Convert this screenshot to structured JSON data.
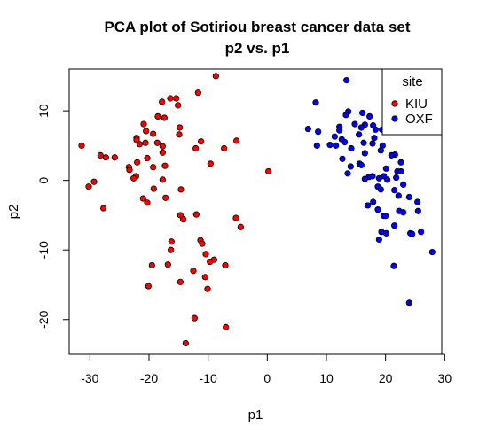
{
  "chart_data": {
    "type": "scatter",
    "title": "PCA plot of Sotiriou breast cancer data set",
    "subtitle": "p2 vs. p1",
    "xlabel": "p1",
    "ylabel": "p2",
    "xlim": [
      -33.5,
      29.5
    ],
    "ylim": [
      -25,
      16
    ],
    "xticks": [
      -30,
      -20,
      -10,
      0,
      10,
      20,
      30
    ],
    "yticks": [
      -20,
      -10,
      0,
      10
    ],
    "grid": false,
    "legend": {
      "title": "site",
      "position": "top-right"
    },
    "series": [
      {
        "name": "KIU",
        "color": "#ff0000",
        "points": [
          [
            -8.7,
            15.0
          ],
          [
            -11.7,
            12.6
          ],
          [
            -16.4,
            11.8
          ],
          [
            -15.4,
            11.8
          ],
          [
            -17.8,
            11.3
          ],
          [
            -15.1,
            10.8
          ],
          [
            -18.5,
            9.2
          ],
          [
            -17.4,
            9.0
          ],
          [
            -20.9,
            8.1
          ],
          [
            -14.8,
            7.6
          ],
          [
            -20.5,
            7.1
          ],
          [
            -19.3,
            6.7
          ],
          [
            -14.9,
            6.6
          ],
          [
            -22.1,
            6.1
          ],
          [
            -22.1,
            5.8
          ],
          [
            -5.2,
            5.7
          ],
          [
            -11.2,
            5.6
          ],
          [
            -20.6,
            5.4
          ],
          [
            -18.6,
            5.4
          ],
          [
            -21.6,
            5.2
          ],
          [
            -31.4,
            5.0
          ],
          [
            -17.7,
            4.9
          ],
          [
            -12.1,
            4.6
          ],
          [
            -7.3,
            4.6
          ],
          [
            -17.7,
            4.0
          ],
          [
            -28.2,
            3.6
          ],
          [
            -27.3,
            3.3
          ],
          [
            -25.8,
            3.3
          ],
          [
            -20.3,
            3.2
          ],
          [
            -22.0,
            2.6
          ],
          [
            -9.6,
            2.4
          ],
          [
            -17.3,
            2.1
          ],
          [
            -19.3,
            1.9
          ],
          [
            -23.4,
            1.9
          ],
          [
            -23.3,
            1.5
          ],
          [
            0.2,
            1.3
          ],
          [
            -22.2,
            0.6
          ],
          [
            -22.6,
            0.3
          ],
          [
            -17.7,
            0.1
          ],
          [
            -29.3,
            -0.2
          ],
          [
            -30.2,
            -0.9
          ],
          [
            -19.2,
            -1.2
          ],
          [
            -14.6,
            -1.3
          ],
          [
            -17.2,
            -2.5
          ],
          [
            -21.0,
            -2.6
          ],
          [
            -20.3,
            -3.2
          ],
          [
            -27.7,
            -4.0
          ],
          [
            -12.0,
            -4.9
          ],
          [
            -14.7,
            -5.0
          ],
          [
            -14.2,
            -5.6
          ],
          [
            -5.3,
            -5.4
          ],
          [
            -4.5,
            -6.7
          ],
          [
            -16.2,
            -8.8
          ],
          [
            -11.3,
            -8.6
          ],
          [
            -11.0,
            -9.1
          ],
          [
            -16.3,
            -10.0
          ],
          [
            -10.4,
            -10.6
          ],
          [
            -9.0,
            -11.4
          ],
          [
            -19.5,
            -12.2
          ],
          [
            -7.1,
            -12.2
          ],
          [
            -9.7,
            -11.7
          ],
          [
            -16.8,
            -12.1
          ],
          [
            -12.5,
            -13.0
          ],
          [
            -10.5,
            -13.9
          ],
          [
            -14.7,
            -14.6
          ],
          [
            -20.1,
            -15.2
          ],
          [
            -10.1,
            -15.6
          ],
          [
            -12.3,
            -19.8
          ],
          [
            -7.0,
            -21.1
          ],
          [
            -13.8,
            -23.4
          ]
        ]
      },
      {
        "name": "OXF",
        "color": "#0000ff",
        "points": [
          [
            13.4,
            14.4
          ],
          [
            8.2,
            11.2
          ],
          [
            13.7,
            9.9
          ],
          [
            16.1,
            9.7
          ],
          [
            13.3,
            9.4
          ],
          [
            17.3,
            9.2
          ],
          [
            14.8,
            8.1
          ],
          [
            16.5,
            8.0
          ],
          [
            17.9,
            7.9
          ],
          [
            12.2,
            7.7
          ],
          [
            15.9,
            7.6
          ],
          [
            18.3,
            7.3
          ],
          [
            6.9,
            7.4
          ],
          [
            19.4,
            7.3
          ],
          [
            12.2,
            7.2
          ],
          [
            8.6,
            7.0
          ],
          [
            15.5,
            6.6
          ],
          [
            11.4,
            6.3
          ],
          [
            18.1,
            6.1
          ],
          [
            12.6,
            5.9
          ],
          [
            13.1,
            5.5
          ],
          [
            16.3,
            5.4
          ],
          [
            17.8,
            5.3
          ],
          [
            11.6,
            5.0
          ],
          [
            8.4,
            5.0
          ],
          [
            10.6,
            5.1
          ],
          [
            19.5,
            5.0
          ],
          [
            14.2,
            4.6
          ],
          [
            19.2,
            4.3
          ],
          [
            16.5,
            3.9
          ],
          [
            21.6,
            3.7
          ],
          [
            21.0,
            3.6
          ],
          [
            12.7,
            3.1
          ],
          [
            22.6,
            2.6
          ],
          [
            15.6,
            2.4
          ],
          [
            14.1,
            2.0
          ],
          [
            15.9,
            2.2
          ],
          [
            20.1,
            1.7
          ],
          [
            22.0,
            1.3
          ],
          [
            22.6,
            1.3
          ],
          [
            13.6,
            1.0
          ],
          [
            19.7,
            0.6
          ],
          [
            17.2,
            0.5
          ],
          [
            17.8,
            0.6
          ],
          [
            21.8,
            0.4
          ],
          [
            16.5,
            0.2
          ],
          [
            18.9,
            0.3
          ],
          [
            20.3,
            0.1
          ],
          [
            18.7,
            -0.9
          ],
          [
            23.0,
            -0.6
          ],
          [
            19.2,
            -1.3
          ],
          [
            21.5,
            -1.4
          ],
          [
            22.2,
            -2.2
          ],
          [
            24.0,
            -2.4
          ],
          [
            25.4,
            -3.1
          ],
          [
            17.9,
            -3.1
          ],
          [
            17.0,
            -3.6
          ],
          [
            18.7,
            -4.2
          ],
          [
            22.3,
            -4.4
          ],
          [
            25.5,
            -4.4
          ],
          [
            23.0,
            -4.6
          ],
          [
            19.7,
            -5.1
          ],
          [
            20.0,
            -5.1
          ],
          [
            21.5,
            -6.5
          ],
          [
            26.0,
            -7.4
          ],
          [
            19.3,
            -7.4
          ],
          [
            24.2,
            -7.6
          ],
          [
            20.1,
            -7.6
          ],
          [
            24.5,
            -7.7
          ],
          [
            18.9,
            -8.5
          ],
          [
            27.9,
            -10.3
          ],
          [
            21.4,
            -12.3
          ],
          [
            24.0,
            -17.6
          ]
        ]
      }
    ]
  }
}
